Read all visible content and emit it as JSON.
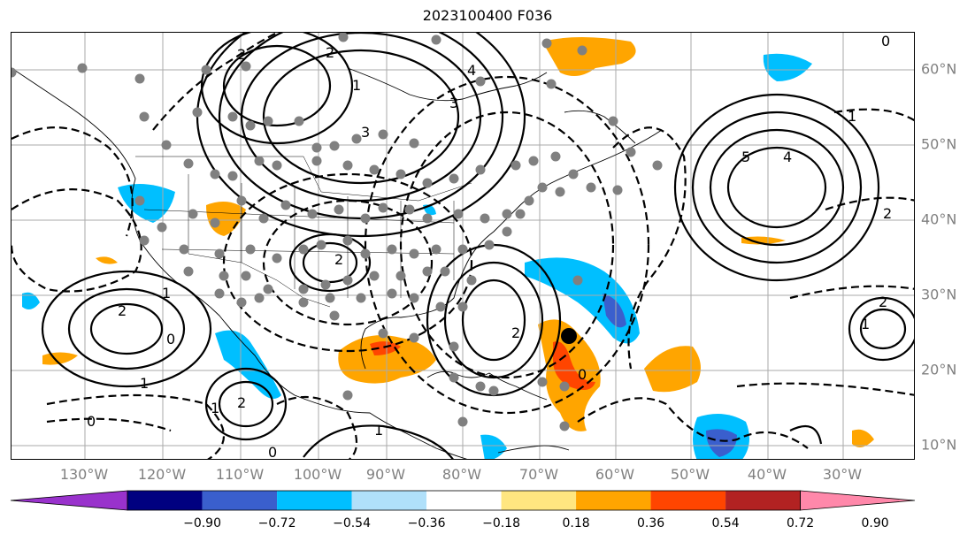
{
  "title": "2023100400 F036",
  "longitude_labels": [
    "130°W",
    "120°W",
    "110°W",
    "100°W",
    "90°W",
    "80°W",
    "70°W",
    "60°W",
    "50°W",
    "40°W",
    "30°W"
  ],
  "latitude_labels": [
    "60°N",
    "50°N",
    "40°N",
    "30°N",
    "20°N",
    "10°N"
  ],
  "colorbar": {
    "tick_labels": [
      "−0.90",
      "−0.72",
      "−0.54",
      "−0.36",
      "−0.18",
      "0.18",
      "0.36",
      "0.54",
      "0.72",
      "0.90"
    ],
    "colors": [
      "#9932cc",
      "#000080",
      "#3a5fcd",
      "#00bfff",
      "#b0e0fa",
      "#ffffff",
      "#ffe680",
      "#ffa500",
      "#ff4500",
      "#b22222",
      "#ff88aa"
    ]
  },
  "contour_labels": [
    "0",
    "2",
    "1",
    "3",
    "2",
    "3",
    "4",
    "5",
    "4",
    "2",
    "2",
    "1",
    "1",
    "2",
    "0",
    "1",
    "1",
    "2",
    "2",
    "2",
    "1",
    "0",
    "0",
    "1",
    "0"
  ],
  "marker": {
    "type": "black-dot",
    "lon": "66°W",
    "lat": "24.5°N"
  }
}
